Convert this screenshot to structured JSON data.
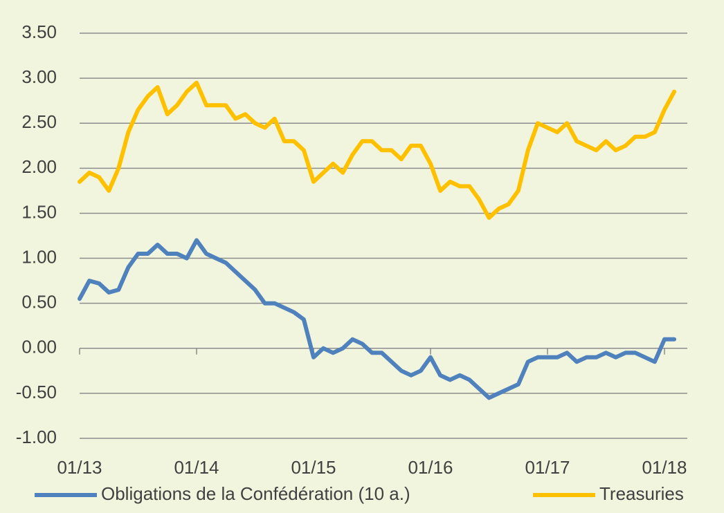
{
  "chart_data": {
    "type": "line",
    "x": [
      "01/13",
      "02/13",
      "03/13",
      "04/13",
      "05/13",
      "06/13",
      "07/13",
      "08/13",
      "09/13",
      "10/13",
      "11/13",
      "12/13",
      "01/14",
      "02/14",
      "03/14",
      "04/14",
      "05/14",
      "06/14",
      "07/14",
      "08/14",
      "09/14",
      "10/14",
      "11/14",
      "12/14",
      "01/15",
      "02/15",
      "03/15",
      "04/15",
      "05/15",
      "06/15",
      "07/15",
      "08/15",
      "09/15",
      "10/15",
      "11/15",
      "12/15",
      "01/16",
      "02/16",
      "03/16",
      "04/16",
      "05/16",
      "06/16",
      "07/16",
      "08/16",
      "09/16",
      "10/16",
      "11/16",
      "12/16",
      "01/17",
      "02/17",
      "03/17",
      "04/17",
      "05/17",
      "06/17",
      "07/17",
      "08/17",
      "09/17",
      "10/17",
      "11/17",
      "12/17",
      "01/18",
      "02/18"
    ],
    "xticks": [
      "01/13",
      "01/14",
      "01/15",
      "01/16",
      "01/17",
      "01/18"
    ],
    "ylim": [
      -1,
      3.5
    ],
    "yticks": [
      {
        "value": -1,
        "label": "-1.00"
      },
      {
        "value": -0.5,
        "label": "-0.50"
      },
      {
        "value": 0,
        "label": "0.00"
      },
      {
        "value": 0.5,
        "label": "0.50"
      },
      {
        "value": 1,
        "label": "1.00"
      },
      {
        "value": 1.5,
        "label": "1.50"
      },
      {
        "value": 2,
        "label": "2.00"
      },
      {
        "value": 2.5,
        "label": "2.50"
      },
      {
        "value": 3,
        "label": "3.00"
      },
      {
        "value": 3.5,
        "label": "3.50"
      }
    ],
    "grid": true,
    "legend": "bottom",
    "series": [
      {
        "name": "Obligations de la Confédération (10 a.)",
        "color": "#4f81bd",
        "values": [
          0.55,
          0.75,
          0.72,
          0.62,
          0.65,
          0.9,
          1.05,
          1.05,
          1.15,
          1.05,
          1.05,
          1.0,
          1.2,
          1.05,
          1.0,
          0.95,
          0.85,
          0.75,
          0.65,
          0.5,
          0.5,
          0.45,
          0.4,
          0.32,
          -0.1,
          0.0,
          -0.05,
          0.0,
          0.1,
          0.05,
          -0.05,
          -0.05,
          -0.15,
          -0.25,
          -0.3,
          -0.25,
          -0.1,
          -0.3,
          -0.35,
          -0.3,
          -0.35,
          -0.45,
          -0.55,
          -0.5,
          -0.45,
          -0.4,
          -0.15,
          -0.1,
          -0.1,
          -0.1,
          -0.05,
          -0.15,
          -0.1,
          -0.1,
          -0.05,
          -0.1,
          -0.05,
          -0.05,
          -0.1,
          -0.15,
          0.1,
          0.1
        ]
      },
      {
        "name": "Treasuries",
        "color": "#ffc000",
        "values": [
          1.85,
          1.95,
          1.9,
          1.75,
          2.0,
          2.4,
          2.65,
          2.8,
          2.9,
          2.6,
          2.7,
          2.85,
          2.95,
          2.7,
          2.7,
          2.7,
          2.55,
          2.6,
          2.5,
          2.45,
          2.55,
          2.3,
          2.3,
          2.2,
          1.85,
          1.95,
          2.05,
          1.95,
          2.15,
          2.3,
          2.3,
          2.2,
          2.2,
          2.1,
          2.25,
          2.25,
          2.05,
          1.75,
          1.85,
          1.8,
          1.8,
          1.65,
          1.45,
          1.55,
          1.6,
          1.75,
          2.2,
          2.5,
          2.45,
          2.4,
          2.5,
          2.3,
          2.25,
          2.2,
          2.3,
          2.2,
          2.25,
          2.35,
          2.35,
          2.4,
          2.65,
          2.85
        ]
      }
    ]
  }
}
